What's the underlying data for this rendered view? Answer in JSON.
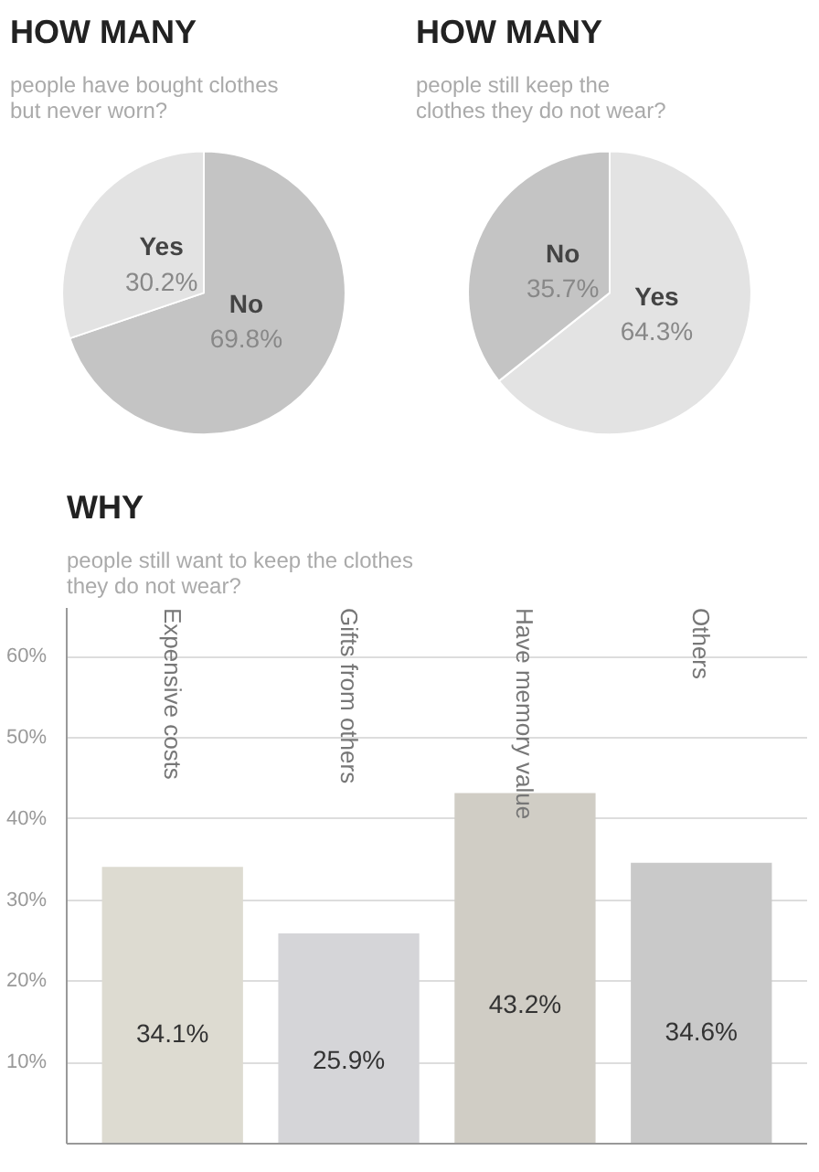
{
  "chart_data": [
    {
      "type": "pie",
      "title": "HOW MANY",
      "subtitle": "people have bought clothes  but never worn?",
      "categories": [
        "No",
        "Yes"
      ],
      "values": [
        69.8,
        30.2
      ],
      "value_labels": [
        "69.8%",
        "30.2%"
      ],
      "colors": [
        "#c4c4c4",
        "#e3e3e3"
      ]
    },
    {
      "type": "pie",
      "title": "HOW MANY",
      "subtitle": "people still keep the clothes they do not wear?",
      "categories": [
        "Yes",
        "No"
      ],
      "values": [
        64.3,
        35.7
      ],
      "value_labels": [
        "64.3%",
        "35.7%"
      ],
      "colors": [
        "#e3e3e3",
        "#c4c4c4"
      ]
    },
    {
      "type": "bar",
      "title": "WHY",
      "subtitle": "people still want to keep the clothes they do not wear?",
      "categories": [
        "Expensive costs",
        "Gifts from others",
        "Have memory value",
        "Others"
      ],
      "values": [
        34.1,
        25.9,
        43.2,
        34.6
      ],
      "value_labels": [
        "34.1%",
        "25.9%",
        "43.2%",
        "34.6%"
      ],
      "colors": [
        "#dddbd1",
        "#d5d5d8",
        "#d0cdc5",
        "#c9c9c9"
      ],
      "ylim": [
        0,
        66
      ],
      "yticks": [
        {
          "value": 10,
          "label": "10%"
        },
        {
          "value": 20,
          "label": "20%"
        },
        {
          "value": 30,
          "label": "30%"
        },
        {
          "value": 40,
          "label": "40%"
        },
        {
          "value": 50,
          "label": "50%"
        },
        {
          "value": 60,
          "label": "60%"
        }
      ],
      "grid": "y"
    }
  ]
}
